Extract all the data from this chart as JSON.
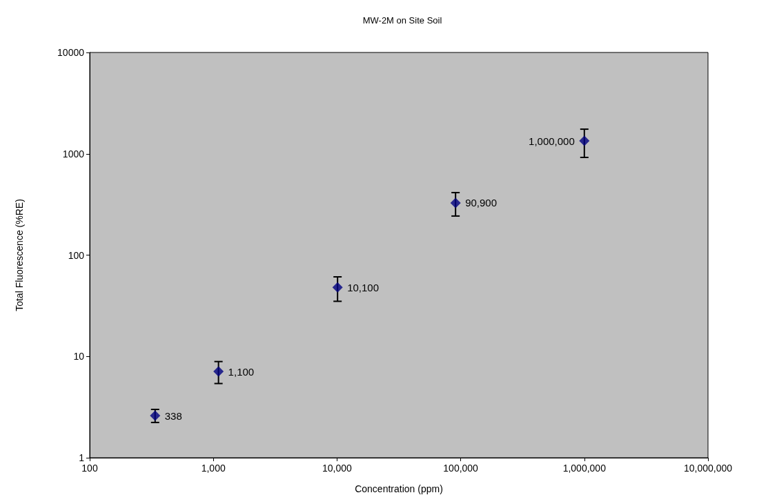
{
  "chart_data": {
    "type": "scatter",
    "title": "MW-2M on Site Soil",
    "xlabel": "Concentration (ppm)",
    "ylabel": "Total Fluorescence (%RE)",
    "x": [
      338,
      1100,
      10100,
      90900,
      1000000
    ],
    "series": [
      {
        "color": "#000080",
        "values": [
          2.6,
          7.1,
          48,
          327,
          1340
        ],
        "errors": [
          [
            2.23,
            3.0
          ],
          [
            5.4,
            8.9
          ],
          [
            35,
            61
          ],
          [
            243,
            414
          ],
          [
            921,
            1750
          ]
        ]
      }
    ],
    "annotations": [
      {
        "text": "338",
        "x": 338,
        "y": 2.6
      },
      {
        "text": "1,100",
        "x": 1100,
        "y": 7.1
      },
      {
        "text": "10,100",
        "x": 10100,
        "y": 48
      },
      {
        "text": "90,900",
        "x": 90900,
        "y": 327
      },
      {
        "text": "1,000,000",
        "x": 1000000,
        "y": 1340
      }
    ],
    "xlim": [
      100,
      10000000
    ],
    "ylim": [
      1,
      10000
    ],
    "xticks": [
      100,
      {
        "value": 1000,
        "label": "1,000"
      },
      {
        "value": 10000,
        "label": "10,000"
      },
      {
        "value": 100000,
        "label": "100,000"
      },
      {
        "value": 1000000,
        "label": "1,000,000"
      },
      {
        "value": 10000000,
        "label": "10,000,000"
      }
    ],
    "yticks": [
      1,
      10,
      100,
      1000,
      10000
    ],
    "log": "xy",
    "grid": false,
    "marker": "diamond"
  }
}
